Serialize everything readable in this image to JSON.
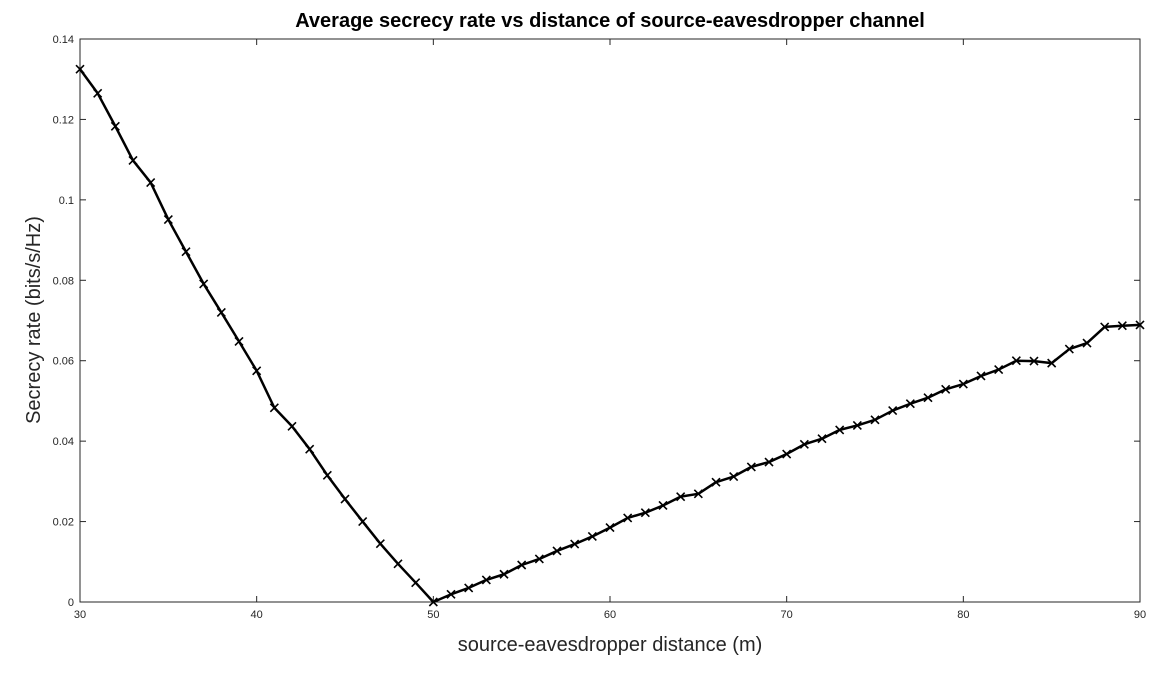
{
  "chart_data": {
    "type": "line",
    "title": "Average secrecy rate vs distance of source-eavesdropper channel",
    "xlabel": "source-eavesdropper distance (m)",
    "ylabel": "Secrecy rate (bits/s/Hz)",
    "xlim": [
      30,
      90
    ],
    "ylim": [
      0,
      0.14
    ],
    "xticks": [
      "30",
      "40",
      "50",
      "60",
      "70",
      "80",
      "90"
    ],
    "yticks": [
      "0",
      "0.02",
      "0.04",
      "0.06",
      "0.08",
      "0.1",
      "0.12",
      "0.14"
    ],
    "grid": false,
    "marker": "x",
    "series": [
      {
        "color": "#000000",
        "x": [
          30,
          31,
          32,
          33,
          34,
          35,
          36,
          37,
          38,
          39,
          40,
          41,
          42,
          43,
          44,
          45,
          46,
          47,
          48,
          49,
          50,
          51,
          52,
          53,
          54,
          55,
          56,
          57,
          58,
          59,
          60,
          61,
          62,
          63,
          64,
          65,
          66,
          67,
          68,
          69,
          70,
          71,
          72,
          73,
          74,
          75,
          76,
          77,
          78,
          79,
          80,
          81,
          82,
          83,
          84,
          85,
          86,
          87,
          88,
          89,
          90
        ],
        "y": [
          0.1325,
          0.1265,
          0.1183,
          0.1098,
          0.1043,
          0.0951,
          0.0871,
          0.0791,
          0.072,
          0.0648,
          0.0575,
          0.0483,
          0.0437,
          0.038,
          0.0315,
          0.0256,
          0.02,
          0.0145,
          0.0095,
          0.0048,
          0.0,
          0.0019,
          0.0035,
          0.0055,
          0.0069,
          0.0092,
          0.0107,
          0.0127,
          0.0144,
          0.0163,
          0.0185,
          0.0209,
          0.0222,
          0.024,
          0.0262,
          0.0269,
          0.0298,
          0.0312,
          0.0336,
          0.0348,
          0.0368,
          0.0392,
          0.0406,
          0.0428,
          0.0439,
          0.0453,
          0.0476,
          0.0493,
          0.0508,
          0.0529,
          0.0542,
          0.0562,
          0.0578,
          0.06,
          0.0599,
          0.0594,
          0.0629,
          0.0644,
          0.0684,
          0.0687,
          0.0689
        ]
      }
    ]
  }
}
